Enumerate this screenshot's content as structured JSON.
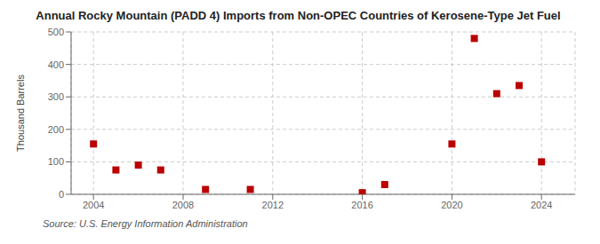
{
  "chart_data": {
    "type": "scatter",
    "title": "Annual Rocky Mountain (PADD 4) Imports from Non-OPEC Countries of Kerosene-Type Jet Fuel",
    "ylabel": "Thousand Barrels",
    "annotation": "Source: U.S. Energy Information Administration",
    "x": [
      2004,
      2005,
      2006,
      2007,
      2009,
      2011,
      2016,
      2017,
      2020,
      2021,
      2022,
      2023,
      2024
    ],
    "values": [
      155,
      75,
      90,
      75,
      15,
      15,
      5,
      30,
      155,
      480,
      310,
      335,
      100
    ],
    "color": "#bb0000",
    "marker": "square",
    "xlim": [
      2003,
      2025.5
    ],
    "ylim": [
      0,
      500
    ],
    "xticks": [
      2004,
      2008,
      2012,
      2016,
      2020,
      2024
    ],
    "yticks": [
      0,
      100,
      200,
      300,
      400,
      500
    ],
    "grid": true
  }
}
